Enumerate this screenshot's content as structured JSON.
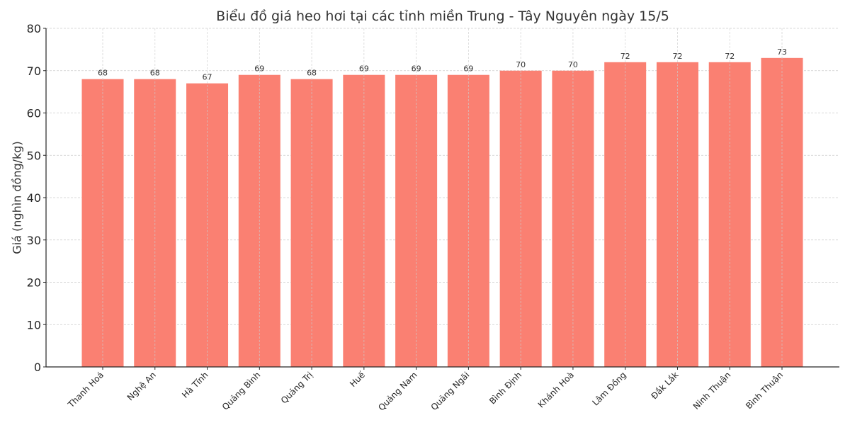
{
  "chart_data": {
    "type": "bar",
    "title": "Biểu đồ giá heo hơi tại các tỉnh miền Trung - Tây Nguyên ngày 15/5",
    "xlabel": "",
    "ylabel": "Giá (nghìn đồng/kg)",
    "ylim": [
      0,
      80
    ],
    "yticks": [
      0,
      10,
      20,
      30,
      40,
      50,
      60,
      70,
      80
    ],
    "grid": true,
    "legend": null,
    "bar_color": "#FA8072",
    "categories": [
      "Thanh Hoá",
      "Nghệ An",
      "Hà Tĩnh",
      "Quảng Bình",
      "Quảng Trị",
      "Huế",
      "Quảng Nam",
      "Quảng Ngãi",
      "Bình Định",
      "Khánh Hoà",
      "Lâm Đồng",
      "Đắk Lắk",
      "Ninh Thuận",
      "Bình Thuận"
    ],
    "values": [
      68,
      68,
      67,
      69,
      68,
      69,
      69,
      69,
      70,
      70,
      72,
      72,
      72,
      73
    ],
    "data_labels": [
      "68",
      "68",
      "67",
      "69",
      "68",
      "69",
      "69",
      "69",
      "70",
      "70",
      "72",
      "72",
      "72",
      "73"
    ]
  },
  "colors": {
    "bar": "#FA8072",
    "grid": "#cccccc",
    "axis": "#262626",
    "text": "#333333"
  }
}
